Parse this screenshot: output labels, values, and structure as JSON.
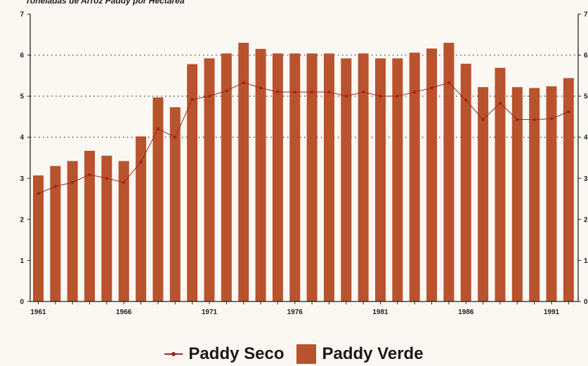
{
  "chart_data": {
    "type": "bar",
    "title": "Toneladas de Arroz Paddy por Hectárea",
    "xlabel": "",
    "ylabel": "",
    "ylim": [
      0,
      7
    ],
    "yticks": [
      0,
      1,
      2,
      3,
      4,
      5,
      6,
      7
    ],
    "categories": [
      "1961",
      "1962",
      "1963",
      "1964",
      "1965",
      "1966",
      "1967",
      "1968",
      "1969",
      "1970",
      "1971",
      "1972",
      "1973",
      "1974",
      "1975",
      "1976",
      "1977",
      "1978",
      "1979",
      "1980",
      "1981",
      "1982",
      "1983",
      "1984",
      "1985",
      "1986",
      "1987",
      "1988",
      "1989",
      "1990",
      "1991",
      "1992"
    ],
    "xtick_labels": [
      "1961",
      "1966",
      "1971",
      "1976",
      "1981",
      "1986",
      "1991"
    ],
    "dotted_gridlines_at": [
      4,
      5,
      6
    ],
    "legend_position": "bottom-center",
    "series": [
      {
        "name": "Paddy Verde",
        "kind": "bar",
        "color": "#b8532e",
        "values": [
          3.07,
          3.3,
          3.42,
          3.67,
          3.55,
          3.42,
          4.02,
          4.97,
          4.73,
          5.78,
          5.92,
          6.04,
          6.3,
          6.15,
          6.04,
          6.04,
          6.04,
          6.04,
          5.92,
          6.04,
          5.92,
          5.92,
          6.06,
          6.16,
          6.3,
          5.79,
          5.22,
          5.69,
          5.22,
          5.2,
          5.24,
          5.44
        ]
      },
      {
        "name": "Paddy Seco",
        "kind": "line",
        "color": "#a3251d",
        "values": [
          2.63,
          2.8,
          2.9,
          3.09,
          3.0,
          2.9,
          3.4,
          4.2,
          4.0,
          4.92,
          5.0,
          5.13,
          5.33,
          5.2,
          5.1,
          5.1,
          5.1,
          5.1,
          5.0,
          5.1,
          5.0,
          5.0,
          5.1,
          5.2,
          5.33,
          4.9,
          4.43,
          4.83,
          4.43,
          4.43,
          4.45,
          4.62
        ]
      }
    ]
  },
  "legend": {
    "seco_label": "Paddy Seco",
    "verde_label": "Paddy Verde"
  }
}
